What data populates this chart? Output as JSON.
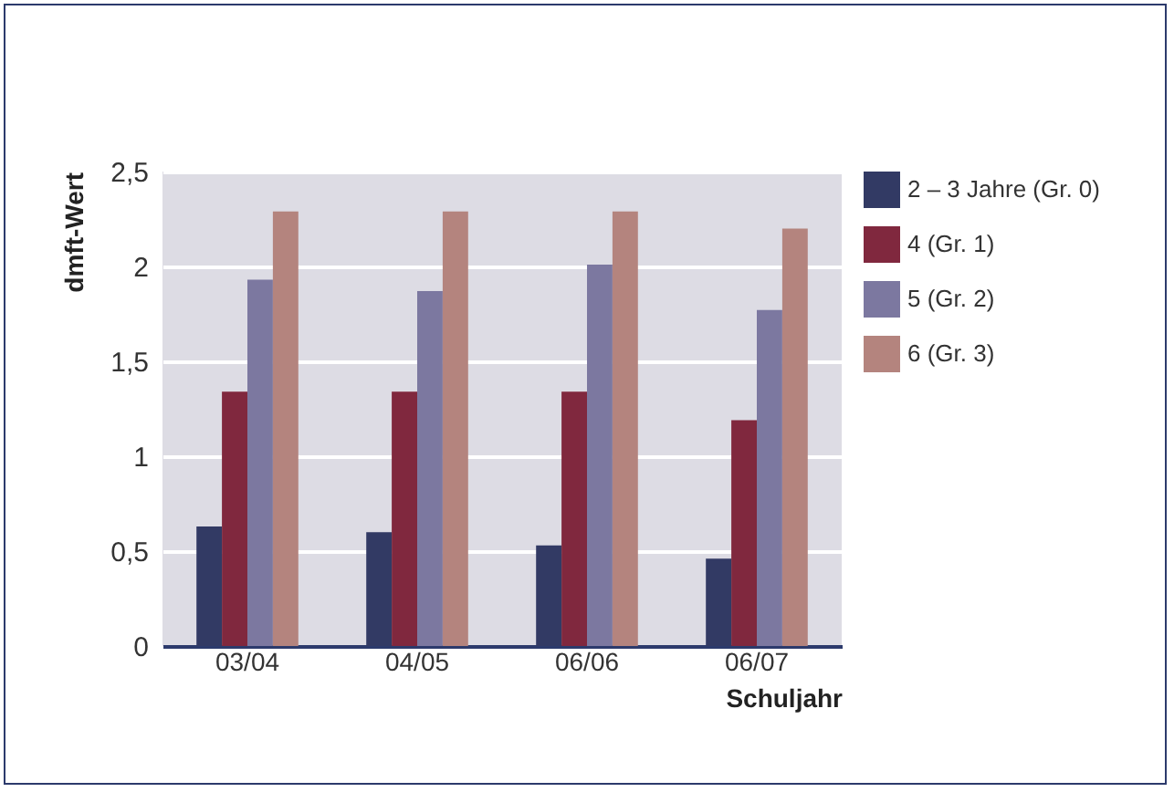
{
  "chart_data": {
    "type": "bar",
    "xlabel": "Schuljahr",
    "ylabel": "dmft-Wert",
    "categories": [
      "03/04",
      "04/05",
      "06/06",
      "06/07"
    ],
    "series": [
      {
        "name": "2 – 3 Jahre (Gr. 0)",
        "color": "#323a64",
        "values": [
          0.63,
          0.6,
          0.53,
          0.46
        ]
      },
      {
        "name": "4 (Gr. 1)",
        "color": "#80283e",
        "values": [
          1.34,
          1.34,
          1.34,
          1.19
        ]
      },
      {
        "name": "5 (Gr. 2)",
        "color": "#7c78a0",
        "values": [
          1.93,
          1.87,
          2.01,
          1.77
        ]
      },
      {
        "name": "6 (Gr. 3)",
        "color": "#b4847e",
        "values": [
          2.29,
          2.29,
          2.29,
          2.2
        ]
      }
    ],
    "ylim": [
      0,
      2.5
    ],
    "yticks": [
      0,
      {
        "value": 0.5,
        "label": "0,5"
      },
      1,
      {
        "value": 1.5,
        "label": "1,5"
      },
      2,
      {
        "value": 2.5,
        "label": "2,5"
      }
    ],
    "grid": "y",
    "legend": "right"
  }
}
